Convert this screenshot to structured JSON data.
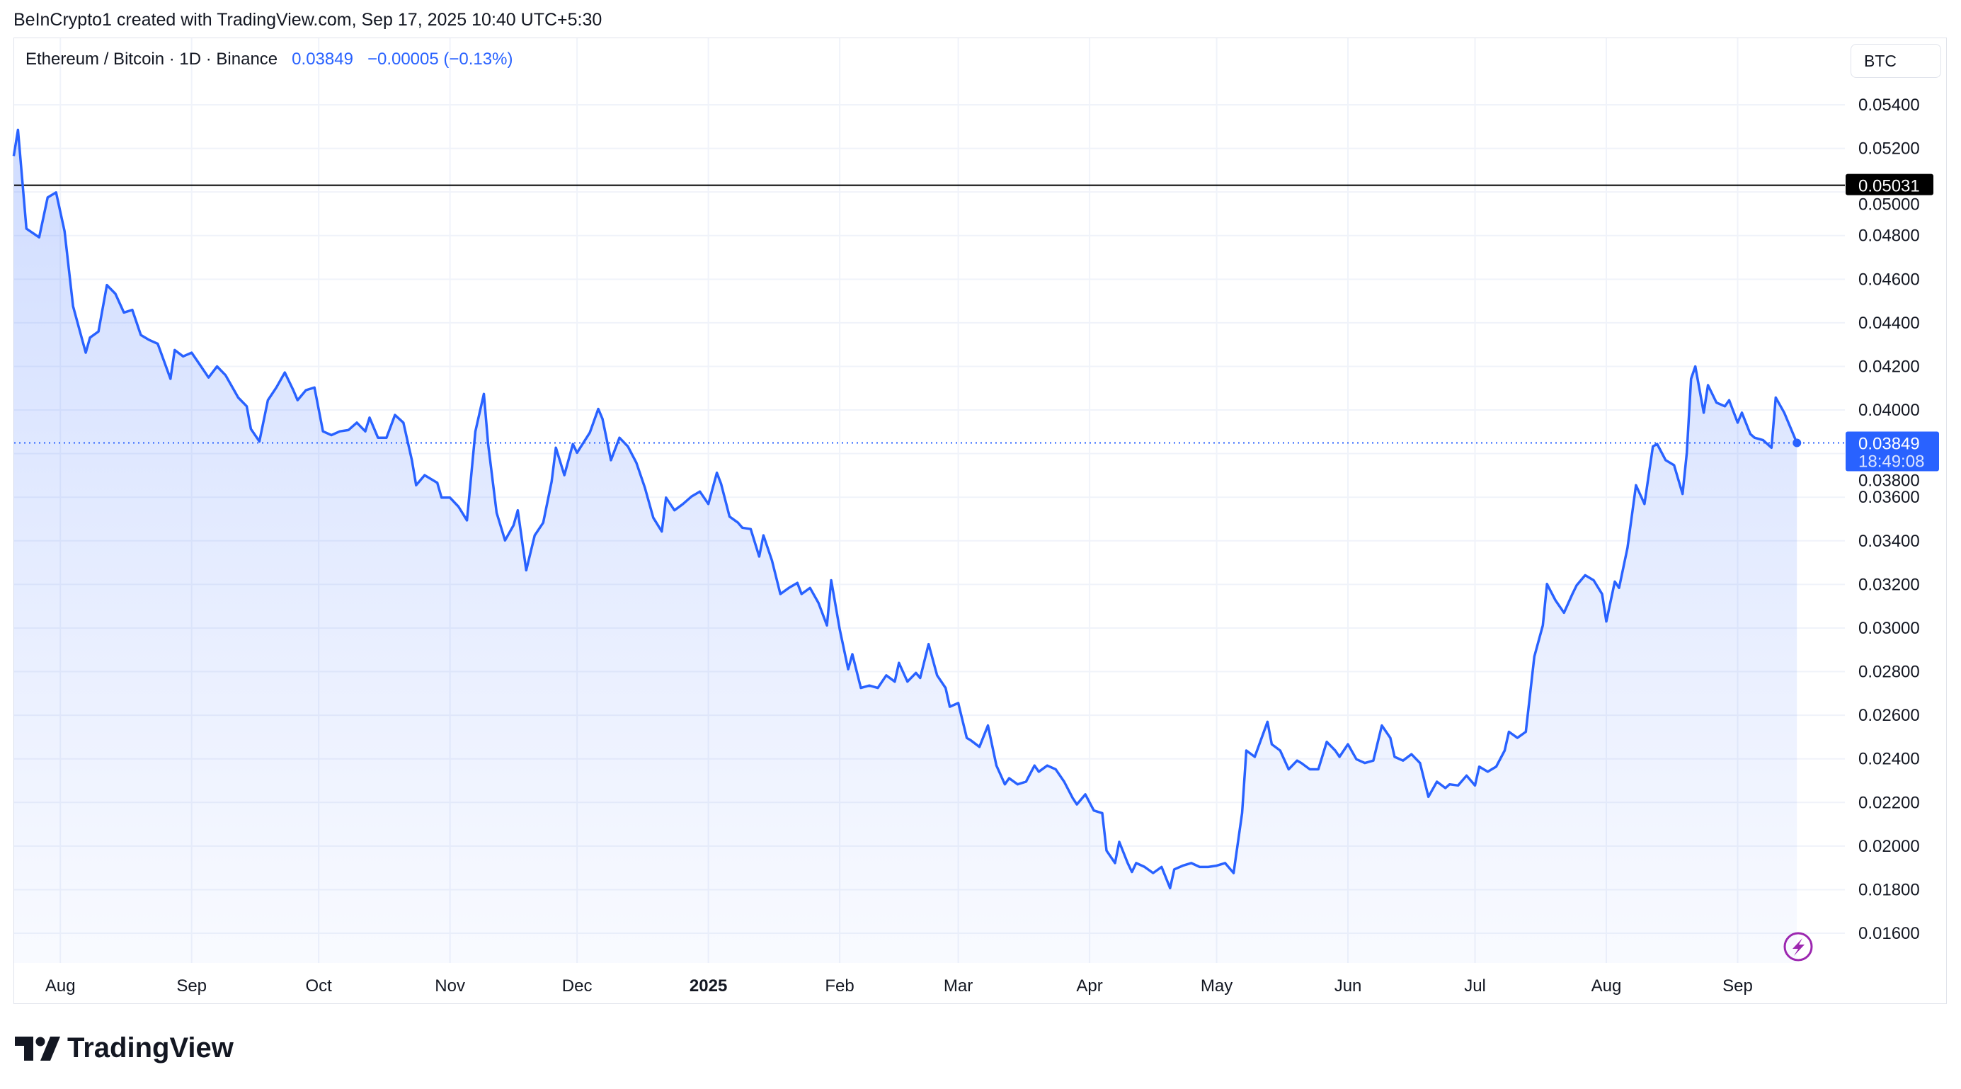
{
  "credit": "BeInCrypto1 created with TradingView.com, Sep 17, 2025 10:40 UTC+5:30",
  "legend": {
    "symbol": "Ethereum / Bitcoin · 1D · Binance",
    "price": "0.03849",
    "change": "−0.00005 (−0.13%)"
  },
  "currency_button": "BTC",
  "logo_text": "TradingView",
  "colors": {
    "line": "#2962ff",
    "hline": "#000000",
    "price_label_bg": "#2962ff",
    "lightning": "#9c27b0"
  },
  "chart_data": {
    "type": "area",
    "title": "Ethereum / Bitcoin · 1D · Binance",
    "x_unit": "days since 2024-07-21",
    "xlim": [
      0,
      431
    ],
    "ylim": [
      0.0155,
      0.0555
    ],
    "y_ticks": [
      "0.05400",
      "0.05200",
      "0.05000",
      "0.04800",
      "0.04600",
      "0.04400",
      "0.04200",
      "0.04000",
      "0.03800",
      "0.03600",
      "0.03400",
      "0.03200",
      "0.03000",
      "0.02800",
      "0.02600",
      "0.02400",
      "0.02200",
      "0.02000",
      "0.01800",
      "0.01600"
    ],
    "x_ticks": [
      {
        "label": "Aug",
        "day": 11
      },
      {
        "label": "Sep",
        "day": 42
      },
      {
        "label": "Oct",
        "day": 72
      },
      {
        "label": "Nov",
        "day": 103
      },
      {
        "label": "Dec",
        "day": 133
      },
      {
        "label": "2025",
        "day": 164,
        "bold": true
      },
      {
        "label": "Feb",
        "day": 195
      },
      {
        "label": "Mar",
        "day": 223
      },
      {
        "label": "Apr",
        "day": 254
      },
      {
        "label": "May",
        "day": 284
      },
      {
        "label": "Jun",
        "day": 315
      },
      {
        "label": "Jul",
        "day": 345
      },
      {
        "label": "Aug",
        "day": 376
      },
      {
        "label": "Sep",
        "day": 407
      }
    ],
    "horizontal_line": {
      "value": 0.05031,
      "label": "0.05031"
    },
    "last_price": {
      "value": 0.03849,
      "label": "0.03849",
      "countdown": "18:49:08"
    },
    "grid": true,
    "points": [
      [
        0,
        0.05165
      ],
      [
        1,
        0.05285
      ],
      [
        3,
        0.04832
      ],
      [
        6,
        0.04792
      ],
      [
        8,
        0.04975
      ],
      [
        10,
        0.04998
      ],
      [
        12,
        0.0482
      ],
      [
        14,
        0.04476
      ],
      [
        17,
        0.04263
      ],
      [
        18,
        0.04332
      ],
      [
        20,
        0.0436
      ],
      [
        22,
        0.04573
      ],
      [
        24,
        0.04533
      ],
      [
        26,
        0.04447
      ],
      [
        28,
        0.04459
      ],
      [
        30,
        0.04344
      ],
      [
        32,
        0.04321
      ],
      [
        34,
        0.04304
      ],
      [
        37,
        0.04143
      ],
      [
        38,
        0.04275
      ],
      [
        40,
        0.04246
      ],
      [
        42,
        0.04263
      ],
      [
        44,
        0.04206
      ],
      [
        46,
        0.04149
      ],
      [
        48,
        0.042
      ],
      [
        50,
        0.0416
      ],
      [
        53,
        0.04057
      ],
      [
        55,
        0.04017
      ],
      [
        56,
        0.03913
      ],
      [
        58,
        0.03856
      ],
      [
        60,
        0.04045
      ],
      [
        62,
        0.04103
      ],
      [
        64,
        0.04172
      ],
      [
        66,
        0.04091
      ],
      [
        67,
        0.04045
      ],
      [
        69,
        0.04091
      ],
      [
        71,
        0.04103
      ],
      [
        73,
        0.03902
      ],
      [
        75,
        0.03885
      ],
      [
        77,
        0.03902
      ],
      [
        79,
        0.03908
      ],
      [
        81,
        0.03942
      ],
      [
        83,
        0.03902
      ],
      [
        84,
        0.03965
      ],
      [
        86,
        0.03873
      ],
      [
        88,
        0.03873
      ],
      [
        90,
        0.03977
      ],
      [
        92,
        0.03942
      ],
      [
        94,
        0.0377
      ],
      [
        95,
        0.03655
      ],
      [
        97,
        0.03701
      ],
      [
        100,
        0.03666
      ],
      [
        101,
        0.03598
      ],
      [
        103,
        0.03598
      ],
      [
        105,
        0.03557
      ],
      [
        107,
        0.03494
      ],
      [
        109,
        0.03902
      ],
      [
        111,
        0.04074
      ],
      [
        112,
        0.03844
      ],
      [
        114,
        0.03529
      ],
      [
        116,
        0.03402
      ],
      [
        118,
        0.03471
      ],
      [
        119,
        0.0354
      ],
      [
        121,
        0.03265
      ],
      [
        123,
        0.03425
      ],
      [
        125,
        0.03483
      ],
      [
        127,
        0.03672
      ],
      [
        128,
        0.03827
      ],
      [
        130,
        0.03701
      ],
      [
        132,
        0.03844
      ],
      [
        133,
        0.03804
      ],
      [
        136,
        0.03896
      ],
      [
        138,
        0.04005
      ],
      [
        139,
        0.0396
      ],
      [
        141,
        0.0377
      ],
      [
        143,
        0.03873
      ],
      [
        145,
        0.03833
      ],
      [
        147,
        0.03758
      ],
      [
        149,
        0.03644
      ],
      [
        151,
        0.03506
      ],
      [
        153,
        0.03443
      ],
      [
        154,
        0.03598
      ],
      [
        156,
        0.0354
      ],
      [
        158,
        0.03569
      ],
      [
        160,
        0.03603
      ],
      [
        162,
        0.03626
      ],
      [
        164,
        0.03569
      ],
      [
        166,
        0.03712
      ],
      [
        167,
        0.03661
      ],
      [
        169,
        0.03511
      ],
      [
        171,
        0.03483
      ],
      [
        172,
        0.0346
      ],
      [
        174,
        0.03454
      ],
      [
        176,
        0.03328
      ],
      [
        177,
        0.03425
      ],
      [
        179,
        0.0331
      ],
      [
        181,
        0.03156
      ],
      [
        183,
        0.03184
      ],
      [
        185,
        0.03207
      ],
      [
        186,
        0.03156
      ],
      [
        188,
        0.03184
      ],
      [
        190,
        0.03115
      ],
      [
        192,
        0.03012
      ],
      [
        193,
        0.03219
      ],
      [
        195,
        0.02995
      ],
      [
        197,
        0.02811
      ],
      [
        198,
        0.0288
      ],
      [
        200,
        0.02725
      ],
      [
        202,
        0.02736
      ],
      [
        204,
        0.02725
      ],
      [
        206,
        0.02783
      ],
      [
        208,
        0.02754
      ],
      [
        209,
        0.0284
      ],
      [
        211,
        0.02754
      ],
      [
        213,
        0.02794
      ],
      [
        214,
        0.02771
      ],
      [
        216,
        0.02926
      ],
      [
        218,
        0.02783
      ],
      [
        220,
        0.02725
      ],
      [
        221,
        0.02639
      ],
      [
        223,
        0.02656
      ],
      [
        225,
        0.02496
      ],
      [
        226,
        0.02484
      ],
      [
        228,
        0.02455
      ],
      [
        230,
        0.02553
      ],
      [
        232,
        0.02369
      ],
      [
        234,
        0.02283
      ],
      [
        235,
        0.02311
      ],
      [
        237,
        0.02283
      ],
      [
        239,
        0.02295
      ],
      [
        241,
        0.02369
      ],
      [
        242,
        0.02341
      ],
      [
        244,
        0.02369
      ],
      [
        246,
        0.02352
      ],
      [
        248,
        0.02295
      ],
      [
        250,
        0.0222
      ],
      [
        251,
        0.02191
      ],
      [
        253,
        0.02237
      ],
      [
        255,
        0.02163
      ],
      [
        257,
        0.02151
      ],
      [
        258,
        0.01979
      ],
      [
        260,
        0.01922
      ],
      [
        261,
        0.02019
      ],
      [
        263,
        0.01922
      ],
      [
        264,
        0.01881
      ],
      [
        265,
        0.01922
      ],
      [
        267,
        0.01904
      ],
      [
        269,
        0.01876
      ],
      [
        271,
        0.01904
      ],
      [
        273,
        0.01807
      ],
      [
        274,
        0.01893
      ],
      [
        276,
        0.0191
      ],
      [
        278,
        0.01922
      ],
      [
        280,
        0.01904
      ],
      [
        282,
        0.01904
      ],
      [
        284,
        0.0191
      ],
      [
        286,
        0.01922
      ],
      [
        288,
        0.01876
      ],
      [
        290,
        0.02151
      ],
      [
        291,
        0.02438
      ],
      [
        293,
        0.02409
      ],
      [
        296,
        0.0257
      ],
      [
        297,
        0.02467
      ],
      [
        299,
        0.02438
      ],
      [
        301,
        0.02352
      ],
      [
        303,
        0.02392
      ],
      [
        304,
        0.02381
      ],
      [
        306,
        0.02352
      ],
      [
        308,
        0.02352
      ],
      [
        310,
        0.02478
      ],
      [
        312,
        0.02438
      ],
      [
        313,
        0.02409
      ],
      [
        315,
        0.02467
      ],
      [
        317,
        0.02398
      ],
      [
        319,
        0.02381
      ],
      [
        321,
        0.02392
      ],
      [
        323,
        0.02553
      ],
      [
        325,
        0.02496
      ],
      [
        326,
        0.02409
      ],
      [
        328,
        0.02392
      ],
      [
        330,
        0.02421
      ],
      [
        332,
        0.02381
      ],
      [
        334,
        0.02226
      ],
      [
        336,
        0.02295
      ],
      [
        338,
        0.02266
      ],
      [
        339,
        0.02283
      ],
      [
        341,
        0.02278
      ],
      [
        343,
        0.02323
      ],
      [
        345,
        0.02278
      ],
      [
        346,
        0.02364
      ],
      [
        348,
        0.02341
      ],
      [
        350,
        0.02364
      ],
      [
        352,
        0.02438
      ],
      [
        353,
        0.02524
      ],
      [
        355,
        0.02496
      ],
      [
        357,
        0.02524
      ],
      [
        359,
        0.02869
      ],
      [
        361,
        0.03012
      ],
      [
        362,
        0.03202
      ],
      [
        364,
        0.03127
      ],
      [
        366,
        0.0307
      ],
      [
        368,
        0.03156
      ],
      [
        369,
        0.03196
      ],
      [
        371,
        0.03242
      ],
      [
        373,
        0.03219
      ],
      [
        375,
        0.03156
      ],
      [
        376,
        0.0303
      ],
      [
        378,
        0.03213
      ],
      [
        379,
        0.03184
      ],
      [
        381,
        0.03368
      ],
      [
        383,
        0.03655
      ],
      [
        385,
        0.03569
      ],
      [
        387,
        0.03833
      ],
      [
        388,
        0.03844
      ],
      [
        390,
        0.0377
      ],
      [
        392,
        0.03747
      ],
      [
        394,
        0.03615
      ],
      [
        395,
        0.03804
      ],
      [
        396,
        0.04143
      ],
      [
        397,
        0.042
      ],
      [
        399,
        0.03988
      ],
      [
        400,
        0.04114
      ],
      [
        402,
        0.04034
      ],
      [
        404,
        0.04017
      ],
      [
        405,
        0.04045
      ],
      [
        407,
        0.03942
      ],
      [
        408,
        0.03988
      ],
      [
        410,
        0.0389
      ],
      [
        411,
        0.03873
      ],
      [
        413,
        0.03862
      ],
      [
        415,
        0.03827
      ],
      [
        416,
        0.04057
      ],
      [
        418,
        0.03988
      ],
      [
        421,
        0.03849
      ]
    ]
  }
}
